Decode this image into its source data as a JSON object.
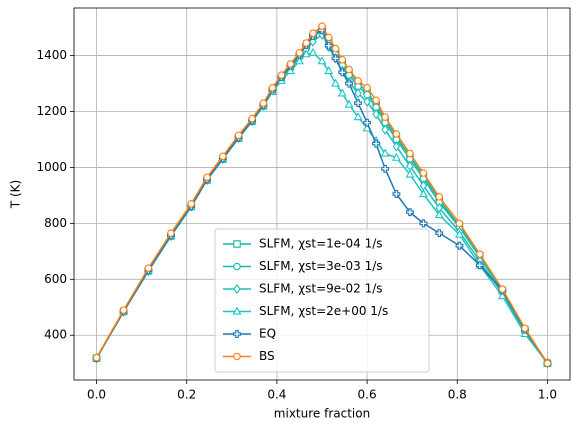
{
  "chart_data": {
    "type": "line",
    "xlabel": "mixture fraction",
    "ylabel": "T (K)",
    "x": [
      0,
      0.06,
      0.115,
      0.165,
      0.21,
      0.245,
      0.28,
      0.315,
      0.345,
      0.37,
      0.39,
      0.41,
      0.43,
      0.45,
      0.465,
      0.48,
      0.5,
      0.515,
      0.53,
      0.545,
      0.56,
      0.58,
      0.6,
      0.62,
      0.64,
      0.665,
      0.695,
      0.725,
      0.76,
      0.805,
      0.85,
      0.9,
      0.95,
      1.0
    ],
    "series": [
      {
        "name": "SLFM, χst=1e-04 1/s",
        "color": "#13b5a8",
        "marker": "square",
        "values": [
          318,
          485,
          630,
          755,
          860,
          955,
          1030,
          1105,
          1165,
          1220,
          1275,
          1320,
          1360,
          1400,
          1435,
          1470,
          1495,
          1455,
          1415,
          1375,
          1340,
          1300,
          1270,
          1225,
          1170,
          1110,
          1040,
          970,
          885,
          790,
          685,
          560,
          420,
          300
        ]
      },
      {
        "name": "SLFM, χst=3e-03 1/s",
        "color": "#16bbb0",
        "marker": "circle",
        "values": [
          318,
          485,
          632,
          757,
          862,
          957,
          1032,
          1107,
          1168,
          1223,
          1278,
          1323,
          1363,
          1403,
          1438,
          1472,
          1498,
          1450,
          1410,
          1365,
          1330,
          1290,
          1260,
          1215,
          1160,
          1100,
          1030,
          960,
          875,
          785,
          680,
          555,
          415,
          300
        ]
      },
      {
        "name": "SLFM, χst=9e-02 1/s",
        "color": "#19c1ba",
        "marker": "diamond",
        "values": [
          318,
          485,
          630,
          755,
          860,
          955,
          1030,
          1105,
          1165,
          1220,
          1275,
          1318,
          1355,
          1390,
          1420,
          1450,
          1475,
          1430,
          1390,
          1345,
          1305,
          1265,
          1235,
          1190,
          1135,
          1075,
          1005,
          935,
          855,
          770,
          665,
          550,
          410,
          300
        ]
      },
      {
        "name": "SLFM, χst=2e+00 1/s",
        "color": "#1cc6c3",
        "marker": "triangle",
        "values": [
          318,
          485,
          630,
          755,
          860,
          955,
          1030,
          1105,
          1165,
          1220,
          1270,
          1310,
          1345,
          1380,
          1405,
          1410,
          1380,
          1345,
          1300,
          1265,
          1225,
          1180,
          1140,
          1095,
          1050,
          1035,
          975,
          905,
          830,
          760,
          650,
          540,
          405,
          300
        ]
      },
      {
        "name": "EQ",
        "color": "#1f77b4",
        "marker": "plus",
        "values": [
          318,
          485,
          632,
          757,
          862,
          957,
          1032,
          1107,
          1168,
          1223,
          1278,
          1323,
          1363,
          1403,
          1438,
          1470,
          1490,
          1435,
          1390,
          1340,
          1300,
          1230,
          1160,
          1085,
          995,
          905,
          840,
          800,
          765,
          720,
          650,
          560,
          420,
          300
        ]
      },
      {
        "name": "BS",
        "color": "#ff7f0e",
        "marker": "circle",
        "values": [
          320,
          490,
          640,
          765,
          870,
          965,
          1040,
          1115,
          1175,
          1230,
          1285,
          1330,
          1370,
          1410,
          1445,
          1480,
          1505,
          1465,
          1425,
          1385,
          1350,
          1310,
          1285,
          1240,
          1180,
          1120,
          1050,
          980,
          895,
          800,
          690,
          565,
          425,
          300
        ]
      }
    ],
    "xlim": [
      -0.05,
      1.05
    ],
    "xticks": [
      {
        "value": 0,
        "label": "0.0"
      },
      {
        "value": 0.2,
        "label": "0.2"
      },
      {
        "value": 0.4,
        "label": "0.4"
      },
      {
        "value": 0.6,
        "label": "0.6"
      },
      {
        "value": 0.8,
        "label": "0.8"
      },
      {
        "value": 1,
        "label": "1.0"
      }
    ],
    "ylim": [
      240,
      1570
    ],
    "yticks": [
      400,
      600,
      800,
      1000,
      1200,
      1400
    ],
    "grid": true,
    "legend": "lower center"
  }
}
